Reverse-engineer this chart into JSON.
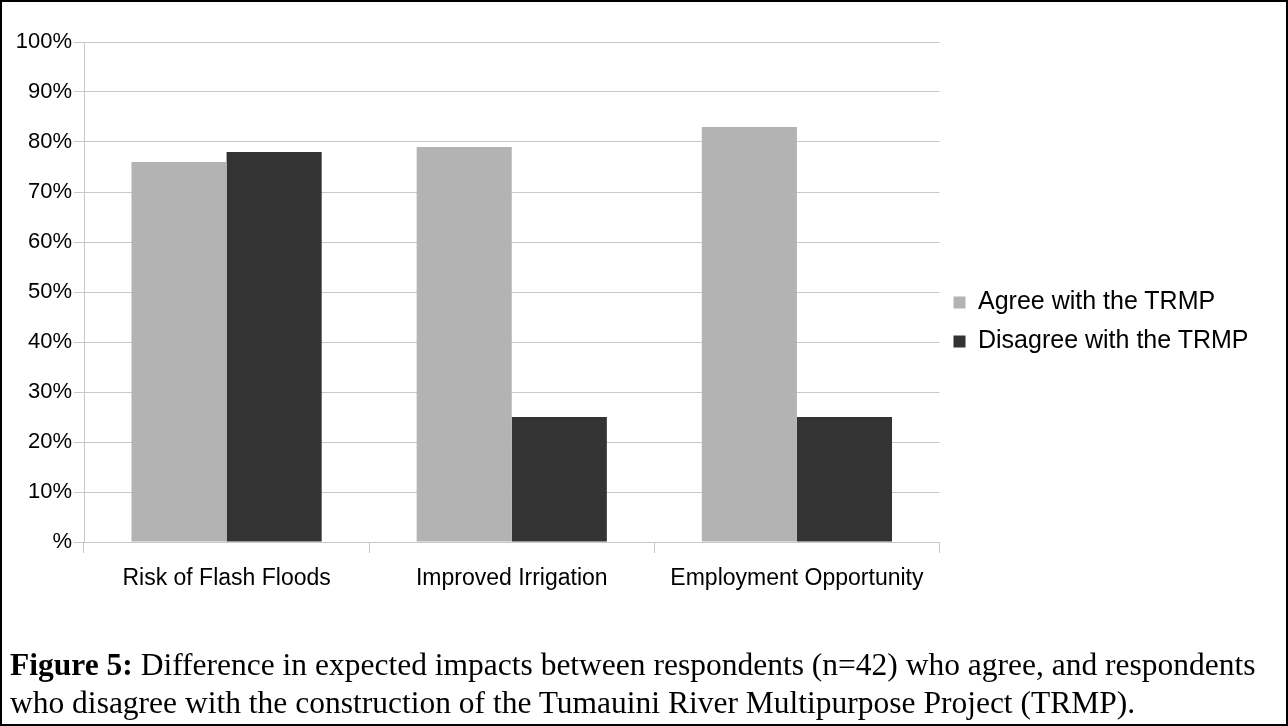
{
  "chart_data": {
    "type": "bar",
    "categories": [
      "Risk of Flash Floods",
      "Improved Irrigation",
      "Employment Opportunity"
    ],
    "series": [
      {
        "name": "Agree with the TRMP",
        "color": "#b3b3b3",
        "values": [
          76,
          79,
          83
        ]
      },
      {
        "name": "Disagree with the TRMP",
        "color": "#333333",
        "values": [
          78,
          25,
          25
        ]
      }
    ],
    "ylim": [
      0,
      100
    ],
    "yticks": [
      {
        "value": 0,
        "label": "%"
      },
      {
        "value": 10,
        "label": "10%"
      },
      {
        "value": 20,
        "label": "20%"
      },
      {
        "value": 30,
        "label": "30%"
      },
      {
        "value": 40,
        "label": "40%"
      },
      {
        "value": 50,
        "label": "50%"
      },
      {
        "value": 60,
        "label": "60%"
      },
      {
        "value": 70,
        "label": "70%"
      },
      {
        "value": 80,
        "label": "80%"
      },
      {
        "value": 90,
        "label": "90%"
      },
      {
        "value": 100,
        "label": "100%"
      }
    ],
    "grid": "y",
    "legend": "right",
    "annotations": [
      "Figure 5: Difference in expected impacts between respondents (n=42) who agree, and respondents who disagree with the construction of the Tumauini River Multipurpose Project (TRMP)."
    ]
  }
}
